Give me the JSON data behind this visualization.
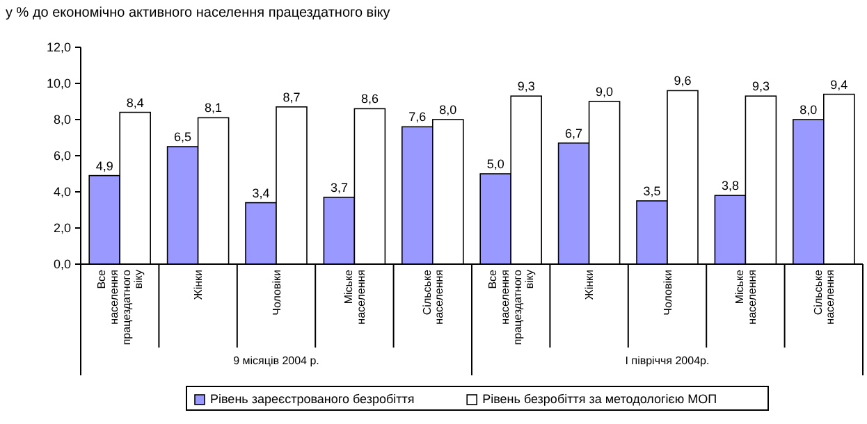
{
  "chart_data": {
    "type": "bar",
    "title": "у % до економічно активного населення працездатного віку",
    "categories": [
      "Все населення працездатного віку",
      "Жінки",
      "Чоловіки",
      "Міське населення",
      "Сільське населення",
      "Все населення працездатного віку",
      "Жінки",
      "Чоловіки",
      "Міське населення",
      "Сільське населення"
    ],
    "series": [
      {
        "name": "Рівень зареєстрованого безробіття",
        "color": "#9999ff",
        "values": [
          4.9,
          6.5,
          3.4,
          3.7,
          7.6,
          5.0,
          6.7,
          3.5,
          3.8,
          8.0
        ],
        "value_labels": [
          "4,9",
          "6,5",
          "3,4",
          "3,7",
          "7,6",
          "5,0",
          "6,7",
          "3,5",
          "3,8",
          "8,0"
        ]
      },
      {
        "name": "Рівень безробіття за методологією МОП",
        "color": "#ffffff",
        "values": [
          8.4,
          8.1,
          8.7,
          8.6,
          8.0,
          9.3,
          9.0,
          9.6,
          9.3,
          9.4
        ],
        "value_labels": [
          "8,4",
          "8,1",
          "8,7",
          "8,6",
          "8,0",
          "9,3",
          "9,0",
          "9,6",
          "9,3",
          "9,4"
        ]
      }
    ],
    "annotations": [
      "9 місяців 2004 р.",
      "I півріччя 2004р."
    ],
    "ylim": [
      0,
      12
    ],
    "yticks": [
      {
        "value": 0,
        "label": "0,0"
      },
      {
        "value": 2,
        "label": "2,0"
      },
      {
        "value": 4,
        "label": "4,0"
      },
      {
        "value": 6,
        "label": "6,0"
      },
      {
        "value": 8,
        "label": "8,0"
      },
      {
        "value": 10,
        "label": "10,0"
      },
      {
        "value": 12,
        "label": "12,0"
      }
    ],
    "legend": "bottom"
  }
}
